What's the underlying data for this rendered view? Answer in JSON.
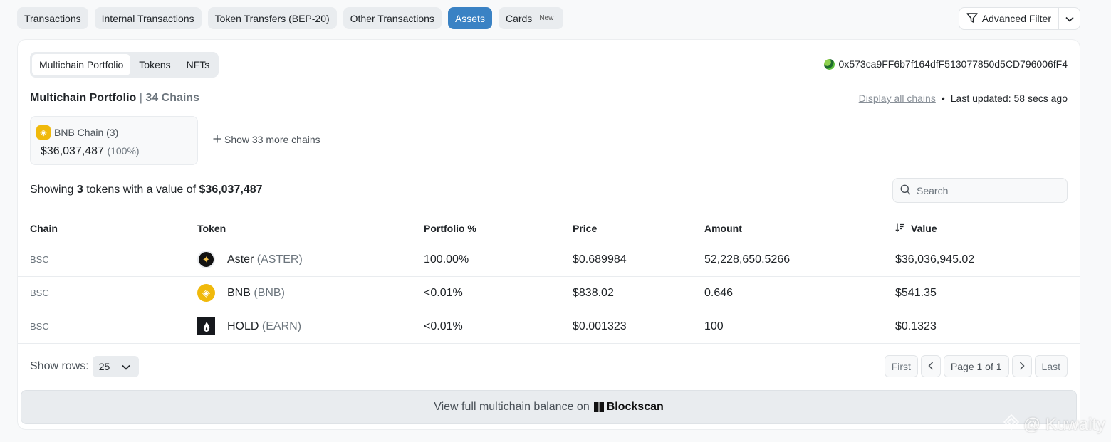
{
  "top_tabs": [
    {
      "label": "Transactions",
      "active": false
    },
    {
      "label": "Internal Transactions",
      "active": false
    },
    {
      "label": "Token Transfers (BEP-20)",
      "active": false
    },
    {
      "label": "Other Transactions",
      "active": false
    },
    {
      "label": "Assets",
      "active": true
    },
    {
      "label": "Cards",
      "active": false,
      "badge": "New"
    }
  ],
  "advanced_filter": {
    "label": "Advanced Filter"
  },
  "sub_tabs": [
    {
      "label": "Multichain Portfolio",
      "active": true
    },
    {
      "label": "Tokens",
      "active": false
    },
    {
      "label": "NFTs",
      "active": false
    }
  ],
  "address": "0x573ca9FF6b7f164dfF513077850d5CD796006fF4",
  "portfolio": {
    "title": "Multichain Portfolio",
    "separator": "|",
    "chains_label": "34 Chains",
    "display_all_link": "Display all chains",
    "dot": "•",
    "last_updated_label": "Last updated:",
    "last_updated_value": "58 secs ago"
  },
  "chain_box": {
    "name": "BNB Chain (3)",
    "value": "$36,037,487",
    "pct": "(100%)"
  },
  "show_more": "Show 33 more chains",
  "summary": {
    "prefix": "Showing",
    "count": "3",
    "middle": "tokens with a value of",
    "total": "$36,037,487"
  },
  "search": {
    "placeholder": "Search"
  },
  "table": {
    "headers": {
      "chain": "Chain",
      "token": "Token",
      "portfolio": "Portfolio %",
      "price": "Price",
      "amount": "Amount",
      "value": "Value"
    },
    "rows": [
      {
        "chain": "BSC",
        "token": "Aster",
        "symbol": "(ASTER)",
        "icon": "aster-icon",
        "portfolio": "100.00%",
        "price": "$0.689984",
        "amount": "52,228,650.5266",
        "value": "$36,036,945.02"
      },
      {
        "chain": "BSC",
        "token": "BNB",
        "symbol": "(BNB)",
        "icon": "bnb-icon",
        "portfolio": "<0.01%",
        "price": "$838.02",
        "amount": "0.646",
        "value": "$541.35"
      },
      {
        "chain": "BSC",
        "token": "HOLD",
        "symbol": "(EARN)",
        "icon": "hold-icon",
        "portfolio": "<0.01%",
        "price": "$0.001323",
        "amount": "100",
        "value": "$0.1323"
      }
    ]
  },
  "pagination": {
    "show_rows_label": "Show rows:",
    "rows_value": "25",
    "first": "First",
    "page_info": "Page 1 of 1",
    "last": "Last"
  },
  "banner": {
    "text": "View full multichain balance on",
    "brand": "Blockscan"
  },
  "watermark": "@ Kuwaity",
  "colors": {
    "accent": "#3a82c4",
    "bnb": "#f0b90b"
  }
}
